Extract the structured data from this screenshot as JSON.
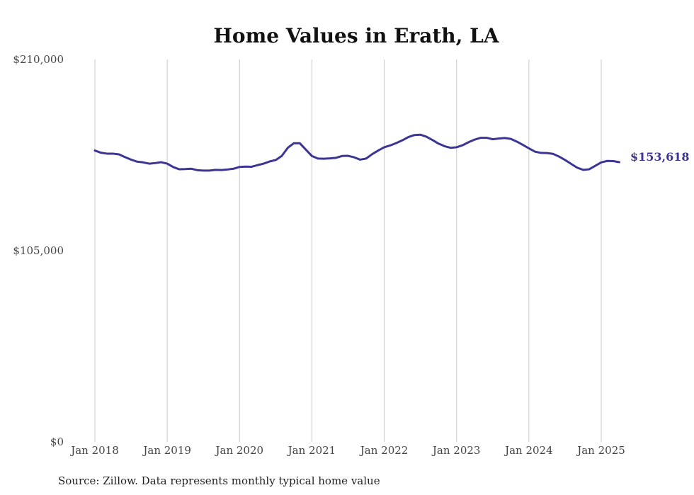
{
  "chart_data": {
    "type": "line",
    "title": "Home Values in Erath, LA",
    "source": "Source: Zillow. Data represents monthly typical home value",
    "ylim": [
      0,
      210000
    ],
    "y_ticks": [
      "$0",
      "$105,000",
      "$210,000"
    ],
    "y_tick_values": [
      0,
      105000,
      210000
    ],
    "x_ticks": [
      "Jan 2018",
      "Jan 2019",
      "Jan 2020",
      "Jan 2021",
      "Jan 2022",
      "Jan 2023",
      "Jan 2024",
      "Jan 2025"
    ],
    "x_tick_dates": [
      "2018-01",
      "2019-01",
      "2020-01",
      "2021-01",
      "2022-01",
      "2023-01",
      "2024-01",
      "2025-01"
    ],
    "grid": "vertical",
    "end_label": "$153,618",
    "line_color": "#3d3594",
    "series": [
      {
        "x": [
          "2018-01",
          "2018-02",
          "2018-03",
          "2018-04",
          "2018-05",
          "2018-06",
          "2018-07",
          "2018-08",
          "2018-09",
          "2018-10",
          "2018-11",
          "2018-12",
          "2019-01",
          "2019-02",
          "2019-03",
          "2019-04",
          "2019-05",
          "2019-06",
          "2019-07",
          "2019-08",
          "2019-09",
          "2019-10",
          "2019-11",
          "2019-12",
          "2020-01",
          "2020-02",
          "2020-03",
          "2020-04",
          "2020-05",
          "2020-06",
          "2020-07",
          "2020-08",
          "2020-09",
          "2020-10",
          "2020-11",
          "2020-12",
          "2021-01",
          "2021-02",
          "2021-03",
          "2021-04",
          "2021-05",
          "2021-06",
          "2021-07",
          "2021-08",
          "2021-09",
          "2021-10",
          "2021-11",
          "2021-12",
          "2022-01",
          "2022-02",
          "2022-03",
          "2022-04",
          "2022-05",
          "2022-06",
          "2022-07",
          "2022-08",
          "2022-09",
          "2022-10",
          "2022-11",
          "2022-12",
          "2023-01",
          "2023-02",
          "2023-03",
          "2023-04",
          "2023-05",
          "2023-06",
          "2023-07",
          "2023-08",
          "2023-09",
          "2023-10",
          "2023-11",
          "2023-12",
          "2024-01",
          "2024-02",
          "2024-03",
          "2024-04",
          "2024-05",
          "2024-06",
          "2024-07",
          "2024-08",
          "2024-09",
          "2024-10",
          "2024-11",
          "2024-12",
          "2025-01",
          "2025-02",
          "2025-03",
          "2025-04"
        ],
        "values": [
          160000,
          158800,
          158300,
          158300,
          157900,
          156400,
          155000,
          153900,
          153500,
          152800,
          153100,
          153600,
          152800,
          150900,
          149700,
          149800,
          150000,
          149200,
          149000,
          149000,
          149400,
          149300,
          149600,
          150000,
          151000,
          151200,
          151100,
          152000,
          152800,
          154000,
          154800,
          157000,
          161500,
          164000,
          164000,
          160500,
          157000,
          155600,
          155500,
          155700,
          156000,
          157000,
          157100,
          156300,
          155000,
          155600,
          158000,
          160000,
          161800,
          162800,
          164100,
          165600,
          167400,
          168500,
          168700,
          167600,
          165800,
          163800,
          162400,
          161500,
          161800,
          162900,
          164600,
          166000,
          167000,
          167000,
          166200,
          166600,
          166900,
          166400,
          164900,
          163100,
          161200,
          159400,
          158700,
          158600,
          158200,
          156700,
          154800,
          152700,
          150600,
          149400,
          149700,
          151600,
          153500,
          154300,
          154200,
          153618
        ]
      }
    ]
  }
}
